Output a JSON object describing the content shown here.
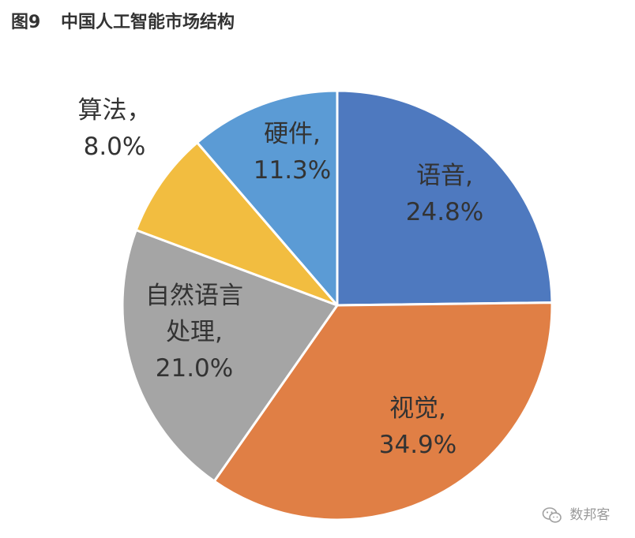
{
  "figure": {
    "number": "图9",
    "title": "中国人工智能市场结构"
  },
  "chart_data": {
    "type": "pie",
    "title": "中国人工智能市场结构",
    "slices": [
      {
        "label": "语音",
        "value": 24.8,
        "value_text": "24.8%",
        "color": "#4e79bf"
      },
      {
        "label": "视觉",
        "value": 34.9,
        "value_text": "34.9%",
        "color": "#e07f45"
      },
      {
        "label": "自然语言处理",
        "value": 21.0,
        "value_text": "21.0%",
        "color": "#a5a5a5"
      },
      {
        "label": "算法",
        "value": 8.0,
        "value_text": "8.0%",
        "color": "#f2bd40"
      },
      {
        "label": "硬件",
        "value": 11.3,
        "value_text": "11.3%",
        "color": "#5b9bd5"
      }
    ],
    "label_lines": [
      [
        "语音,",
        "24.8%"
      ],
      [
        "视觉,",
        "34.9%"
      ],
      [
        "自然语言",
        "处理,",
        "21.0%"
      ],
      [
        "算法，",
        "8.0%"
      ],
      [
        "硬件,",
        "11.3%"
      ]
    ],
    "start_angle": "12 o'clock",
    "direction": "clockwise",
    "label_placement": "inside (算法 outside)",
    "legend": "none"
  },
  "watermark": {
    "text": "数邦客",
    "icon": "wechat-icon"
  }
}
